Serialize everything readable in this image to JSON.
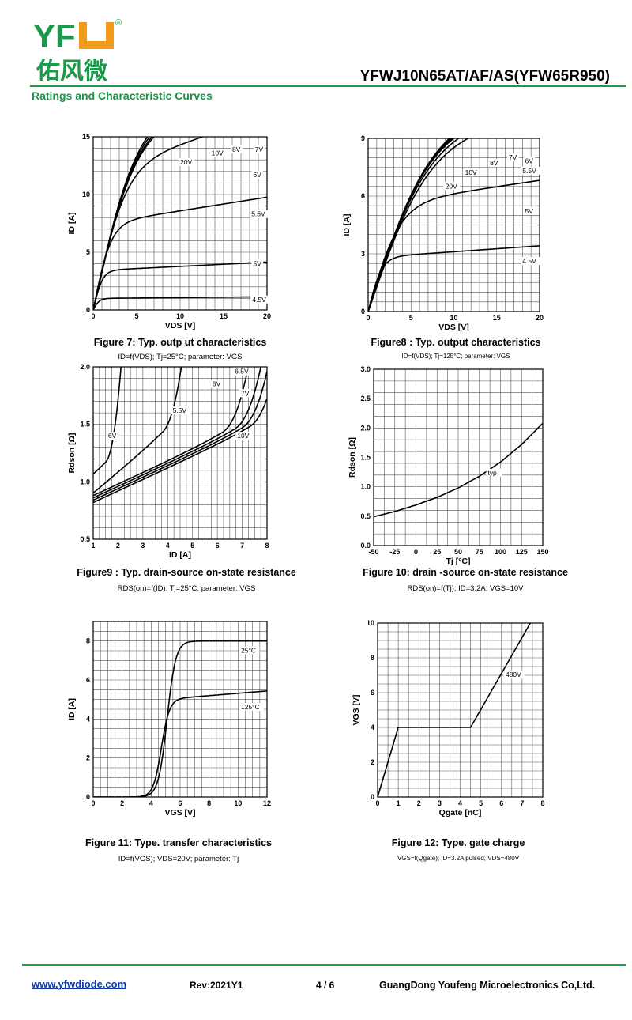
{
  "header": {
    "logo_text": "YFW",
    "logo_cn": "佑风微",
    "logo_reg": "®",
    "part_number": "YFWJ10N65AT/AF/AS(YFW65R950)",
    "section_title": "Ratings and Characteristic Curves",
    "brand_color": "#1a9a4a"
  },
  "footer": {
    "url": "www.yfwdiode.com",
    "rev": "Rev:2021Y1",
    "page": "4 / 6",
    "company": "GuangDong Youfeng Microelectronics Co,Ltd."
  },
  "captions": {
    "fig7": {
      "title": "Figure 7: Typ. outp  ut characteristics",
      "sub": "ID=f(VDS); Tj=25°C; parameter: VGS"
    },
    "fig8": {
      "title": "Figure8 : Typ. output characteristics",
      "sub": "ID=f(VDS); Tj=125°C; parameter: VGS"
    },
    "fig9": {
      "title": "Figure9 : Typ. drain-source on-state resistance",
      "sub": "RDS(on)=f(ID); Tj=25°C; parameter: VGS"
    },
    "fig10": {
      "title": "Figure 10: drain  -source on-state resistance",
      "sub": "RDS(on)=f(Tj); ID=3.2A; VGS=10V"
    },
    "fig11": {
      "title": "Figure 11: Type. transfer characteristics",
      "sub": "ID=f(VGS); VDS=20V; parameter: Tj"
    },
    "fig12": {
      "title": "Figure 12: Type. gate charge",
      "sub": "VGS=f(Qgate); ID=3.2A pulsed; VDS=480V"
    }
  },
  "chart_data": [
    {
      "id": "fig7",
      "type": "line",
      "xlabel": "VDS [V]",
      "ylabel": "ID [A]",
      "xlim": [
        0,
        20
      ],
      "ylim": [
        0,
        15
      ],
      "xticks": [
        0,
        5,
        10,
        15,
        20
      ],
      "yticks": [
        0,
        5,
        10,
        15
      ],
      "grid": true,
      "series": [
        {
          "name": "4.5V",
          "kind": "sat",
          "Isat": 1.0,
          "knee": 1.0,
          "slope": 0.007
        },
        {
          "name": "5V",
          "kind": "sat",
          "Isat": 3.4,
          "knee": 1.5,
          "slope": 0.011
        },
        {
          "name": "5.5V",
          "kind": "sat",
          "Isat": 7.4,
          "knee": 2.8,
          "slope": 0.016
        },
        {
          "name": "6V",
          "kind": "sat",
          "Isat": 12.0,
          "knee": 5.0,
          "slope": 0.02
        },
        {
          "name": "7V",
          "kind": "sat",
          "Isat": 13.8,
          "knee": 6.0,
          "slope": 0.025
        },
        {
          "name": "8V",
          "kind": "sat",
          "Isat": 13.9,
          "knee": 6.0,
          "slope": 0.026
        },
        {
          "name": "10V",
          "kind": "sat",
          "Isat": 14.0,
          "knee": 6.0,
          "slope": 0.028
        },
        {
          "name": "20V",
          "kind": "sat",
          "Isat": 14.1,
          "knee": 6.0,
          "slope": 0.03
        }
      ],
      "labels": [
        {
          "text": "20V",
          "x": 10,
          "y": 12.6
        },
        {
          "text": "10V",
          "x": 13.6,
          "y": 13.4
        },
        {
          "text": "8V",
          "x": 16,
          "y": 13.7
        },
        {
          "text": "7V",
          "x": 18.6,
          "y": 13.7
        },
        {
          "text": "6V",
          "x": 18.4,
          "y": 11.5
        },
        {
          "text": "5.5V",
          "x": 18.2,
          "y": 8.1
        },
        {
          "text": "5V",
          "x": 18.4,
          "y": 3.8
        },
        {
          "text": "4.5V",
          "x": 18.3,
          "y": 0.7
        }
      ]
    },
    {
      "id": "fig8",
      "type": "line",
      "xlabel": "VDS [V]",
      "ylabel": "ID [A]",
      "xlim": [
        0,
        20
      ],
      "ylim": [
        0,
        9
      ],
      "xticks": [
        0,
        5,
        10,
        15,
        20
      ],
      "yticks": [
        0,
        3,
        6,
        9
      ],
      "grid": true,
      "series": [
        {
          "name": "4.5V",
          "kind": "sat",
          "Isat": 2.8,
          "knee": 2.2,
          "slope": 0.011
        },
        {
          "name": "5V",
          "kind": "sat",
          "Isat": 5.5,
          "knee": 5.0,
          "slope": 0.012
        },
        {
          "name": "5.5V",
          "kind": "sat",
          "Isat": 8.6,
          "knee": 9.5,
          "slope": 0.01
        },
        {
          "name": "6V",
          "kind": "sat",
          "Isat": 8.9,
          "knee": 9.5,
          "slope": 0.01
        },
        {
          "name": "7V",
          "kind": "sat",
          "Isat": 9.1,
          "knee": 9.5,
          "slope": 0.01
        },
        {
          "name": "8V",
          "kind": "sat",
          "Isat": 9.2,
          "knee": 9.6,
          "slope": 0.01
        },
        {
          "name": "10V",
          "kind": "sat",
          "Isat": 9.3,
          "knee": 9.7,
          "slope": 0.01
        },
        {
          "name": "20V",
          "kind": "sat",
          "Isat": 9.4,
          "knee": 9.8,
          "slope": 0.01
        }
      ],
      "labels": [
        {
          "text": "20V",
          "x": 9.0,
          "y": 6.4
        },
        {
          "text": "10V",
          "x": 11.3,
          "y": 7.1
        },
        {
          "text": "8V",
          "x": 14.2,
          "y": 7.6
        },
        {
          "text": "7V",
          "x": 16.4,
          "y": 7.9
        },
        {
          "text": "6V",
          "x": 18.3,
          "y": 7.7
        },
        {
          "text": "5.5V",
          "x": 18.0,
          "y": 7.2
        },
        {
          "text": "5V",
          "x": 18.3,
          "y": 5.1
        },
        {
          "text": "4.5V",
          "x": 18.0,
          "y": 2.5
        }
      ]
    },
    {
      "id": "fig9",
      "type": "line",
      "xlabel": "ID [A]",
      "ylabel": "Rdson [Ω]",
      "xlim": [
        1,
        8
      ],
      "ylim": [
        0.5,
        2.0
      ],
      "xticks": [
        1,
        2,
        3,
        4,
        5,
        6,
        7,
        8
      ],
      "yticks": [
        0.5,
        1.0,
        1.5,
        2.0
      ],
      "grid": true,
      "series": [
        {
          "name": "6V",
          "kind": "ron",
          "R0": 1.05,
          "Xs": 1.5,
          "Ra": 0.18,
          "k": 12
        },
        {
          "name": "5.5V",
          "kind": "ron",
          "R0": 0.9,
          "Xs": 3.8,
          "Ra": 0.18,
          "k": 4.5
        },
        {
          "name": "6.5V",
          "kind": "ron",
          "R0": 0.88,
          "Xs": 6.2,
          "Ra": 0.1,
          "k": 2.2
        },
        {
          "name": "6V",
          "kind": "ron",
          "R0": 0.86,
          "Xs": 6.7,
          "Ra": 0.1,
          "k": 2.0
        },
        {
          "name": "7V",
          "kind": "ron",
          "R0": 0.84,
          "Xs": 7.0,
          "Ra": 0.1,
          "k": 2.0
        },
        {
          "name": "10V",
          "kind": "ron",
          "R0": 0.82,
          "Xs": 7.3,
          "Ra": 0.1,
          "k": 1.9
        }
      ],
      "labels": [
        {
          "text": "6V",
          "x": 1.6,
          "y": 1.38
        },
        {
          "text": "5.5V",
          "x": 4.2,
          "y": 1.6
        },
        {
          "text": "6.5V",
          "x": 6.7,
          "y": 1.94
        },
        {
          "text": "6V",
          "x": 5.8,
          "y": 1.83
        },
        {
          "text": "7V",
          "x": 6.95,
          "y": 1.75
        },
        {
          "text": "10V",
          "x": 6.8,
          "y": 1.38
        }
      ]
    },
    {
      "id": "fig10",
      "type": "line",
      "xlabel": "Tj [°C]",
      "ylabel": "Rdson [Ω]",
      "xlim": [
        -50,
        150
      ],
      "ylim": [
        0.0,
        3.0
      ],
      "xticks": [
        -50,
        -25,
        0,
        25,
        50,
        75,
        100,
        125,
        150
      ],
      "yticks": [
        0.0,
        0.5,
        1.0,
        1.5,
        2.0,
        2.5,
        3.0
      ],
      "grid": true,
      "series": [
        {
          "name": "typ",
          "kind": "points",
          "x": [
            -50,
            -25,
            0,
            25,
            50,
            75,
            100,
            125,
            150
          ],
          "y": [
            0.49,
            0.58,
            0.69,
            0.82,
            0.98,
            1.18,
            1.42,
            1.72,
            2.08
          ]
        }
      ],
      "labels": [
        {
          "text": "typ",
          "x": 85,
          "y": 1.2
        }
      ]
    },
    {
      "id": "fig11",
      "type": "line",
      "xlabel": "VGS [V]",
      "ylabel": "ID [A]",
      "xlim": [
        0,
        12
      ],
      "ylim": [
        0,
        9
      ],
      "xticks": [
        0,
        2,
        4,
        6,
        8,
        10,
        12
      ],
      "yticks": [
        0,
        2,
        4,
        6,
        8
      ],
      "grid": true,
      "series": [
        {
          "name": "25°C",
          "kind": "sig",
          "A": 8.0,
          "c": 5.1,
          "w": 0.3,
          "s2": 0.0
        },
        {
          "name": "125°C",
          "kind": "sig",
          "A": 5.0,
          "c": 4.7,
          "w": 0.28,
          "s2": 0.012
        }
      ],
      "labels": [
        {
          "text": "25°C",
          "x": 10.2,
          "y": 7.4
        },
        {
          "text": "125°C",
          "x": 10.2,
          "y": 4.5
        }
      ]
    },
    {
      "id": "fig12",
      "type": "line",
      "xlabel": "Qgate [nC]",
      "ylabel": "VGS [V]",
      "xlim": [
        0,
        8
      ],
      "ylim": [
        0,
        10
      ],
      "xticks": [
        0,
        1,
        2,
        3,
        4,
        5,
        6,
        7,
        8
      ],
      "yticks": [
        0,
        2,
        4,
        6,
        8,
        10
      ],
      "grid": true,
      "series": [
        {
          "name": "480V",
          "kind": "points",
          "x": [
            0,
            1.0,
            4.5,
            7.4
          ],
          "y": [
            0,
            4.0,
            4.0,
            10.0
          ]
        }
      ],
      "labels": [
        {
          "text": "480V",
          "x": 6.2,
          "y": 6.9
        }
      ]
    }
  ]
}
